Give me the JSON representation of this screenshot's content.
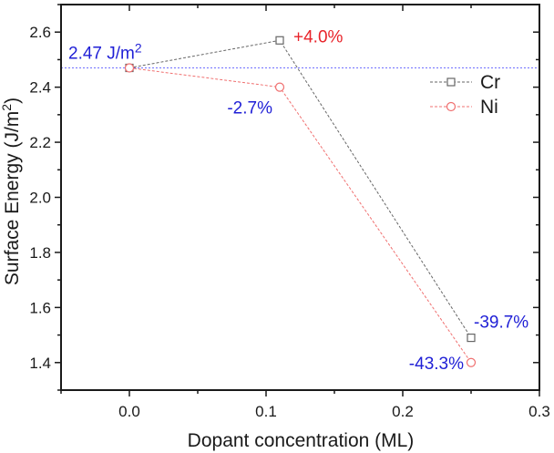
{
  "chart_data": {
    "type": "line",
    "title": "",
    "xlabel": "Dopant concentration (ML)",
    "ylabel_main": "Surface Energy (J/m",
    "ylabel_sup": "2",
    "ylabel_close": ")",
    "xlim": [
      -0.05,
      0.3
    ],
    "ylim": [
      1.3,
      2.7
    ],
    "grid": false,
    "x_ticks": [
      {
        "value": 0.0,
        "label": "0.0"
      },
      {
        "value": 0.1,
        "label": "0.1"
      },
      {
        "value": 0.2,
        "label": "0.2"
      },
      {
        "value": 0.3,
        "label": "0.3"
      }
    ],
    "x_minor_ticks": [
      -0.05,
      0.05,
      0.15,
      0.25
    ],
    "y_ticks": [
      {
        "value": 1.4,
        "label": "1.4"
      },
      {
        "value": 1.6,
        "label": "1.6"
      },
      {
        "value": 1.8,
        "label": "1.8"
      },
      {
        "value": 2.0,
        "label": "2.0"
      },
      {
        "value": 2.2,
        "label": "2.2"
      },
      {
        "value": 2.4,
        "label": "2.4"
      },
      {
        "value": 2.6,
        "label": "2.6"
      }
    ],
    "y_minor_ticks": [
      1.3,
      1.5,
      1.7,
      1.9,
      2.1,
      2.3,
      2.5,
      2.7
    ],
    "series": [
      {
        "name": "Cr",
        "marker": "square",
        "color": "#666666",
        "x": [
          0.0,
          0.11,
          0.25
        ],
        "y": [
          2.47,
          2.57,
          1.49
        ]
      },
      {
        "name": "Ni",
        "marker": "circle",
        "color": "#f07070",
        "x": [
          0.0,
          0.11,
          0.25
        ],
        "y": [
          2.47,
          2.4,
          1.4
        ]
      }
    ],
    "reference_line": {
      "y": 2.47,
      "color": "#7070ff",
      "label_main": "2.47 J/m",
      "label_sup": "2"
    },
    "annotations": [
      {
        "id": "cr-mid",
        "text": "+4.0%",
        "x": 0.11,
        "y": 2.57,
        "color": "#e8232a"
      },
      {
        "id": "ni-mid",
        "text": "-2.7%",
        "x": 0.11,
        "y": 2.4,
        "color": "#1f1fd6"
      },
      {
        "id": "cr-end",
        "text": "-39.7%",
        "x": 0.25,
        "y": 1.49,
        "color": "#1f1fd6"
      },
      {
        "id": "ni-end",
        "text": "-43.3%",
        "x": 0.25,
        "y": 1.4,
        "color": "#1f1fd6"
      }
    ],
    "legend": {
      "placement": "top-right",
      "entries": [
        "Cr",
        "Ni"
      ]
    }
  }
}
